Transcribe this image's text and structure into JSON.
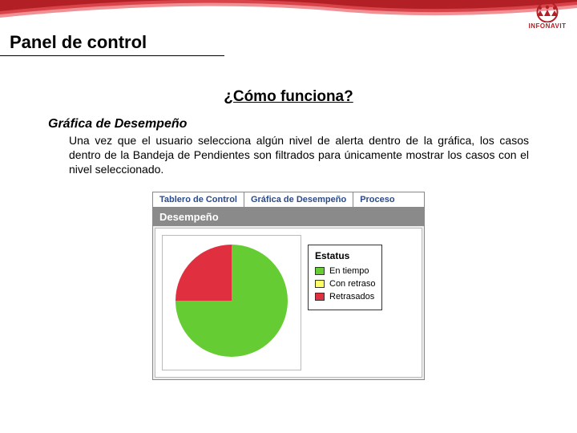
{
  "brand": {
    "name": "INFONAVIT",
    "color": "#b22026",
    "ribbon_light": "#d9444a",
    "ribbon_lighter": "#f09095"
  },
  "page": {
    "title": "Panel de control",
    "title_fontsize": 22,
    "question": "¿Cómo funciona?",
    "question_fontsize": 19,
    "subtitle": "Gráfica de Desempeño",
    "body": "Una vez que el usuario selecciona algún nivel de alerta dentro de la gráfica, los casos dentro de la Bandeja de Pendientes son filtrados para únicamente mostrar los casos con el nivel seleccionado.",
    "body_fontsize": 14
  },
  "widget": {
    "tabs": [
      {
        "label": "Tablero de Control",
        "active": false
      },
      {
        "label": "Gráfica de Desempeño",
        "active": true
      },
      {
        "label": "Proceso",
        "active": false
      }
    ],
    "tab_text_color": "#2a4a8a",
    "title": "Desempeño",
    "title_bg": "#8a8a8a",
    "chart": {
      "type": "pie",
      "slices": [
        {
          "label": "En tiempo",
          "value": 75,
          "color": "#66cc33"
        },
        {
          "label": "Con retraso",
          "value": 0,
          "color": "#ffff66"
        },
        {
          "label": "Retrasados",
          "value": 25,
          "color": "#e03040"
        }
      ],
      "start_angle_deg": -90,
      "radius": 70,
      "background_color": "#ffffff"
    },
    "legend": {
      "title": "Estatus",
      "items": [
        {
          "label": "En tiempo",
          "color": "#66cc33"
        },
        {
          "label": "Con retraso",
          "color": "#ffff66"
        },
        {
          "label": "Retrasados",
          "color": "#e03040"
        }
      ]
    }
  }
}
